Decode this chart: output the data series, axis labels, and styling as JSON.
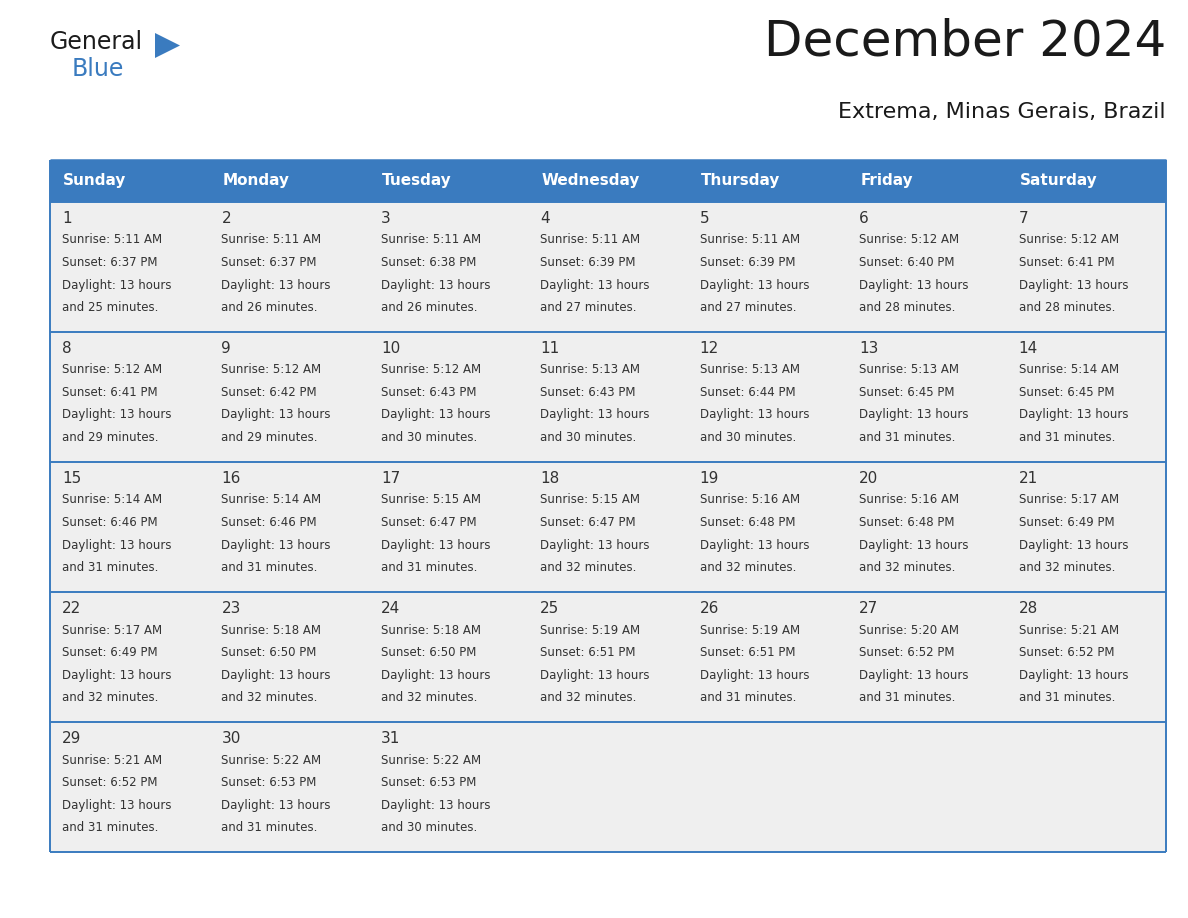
{
  "title": "December 2024",
  "subtitle": "Extrema, Minas Gerais, Brazil",
  "header_color": "#3a7bbf",
  "header_text_color": "#ffffff",
  "cell_bg_color": "#efefef",
  "day_names": [
    "Sunday",
    "Monday",
    "Tuesday",
    "Wednesday",
    "Thursday",
    "Friday",
    "Saturday"
  ],
  "days": [
    {
      "day": 1,
      "row": 0,
      "col": 0,
      "sunrise": "5:11 AM",
      "sunset": "6:37 PM",
      "daylight_min": "25"
    },
    {
      "day": 2,
      "row": 0,
      "col": 1,
      "sunrise": "5:11 AM",
      "sunset": "6:37 PM",
      "daylight_min": "26"
    },
    {
      "day": 3,
      "row": 0,
      "col": 2,
      "sunrise": "5:11 AM",
      "sunset": "6:38 PM",
      "daylight_min": "26"
    },
    {
      "day": 4,
      "row": 0,
      "col": 3,
      "sunrise": "5:11 AM",
      "sunset": "6:39 PM",
      "daylight_min": "27"
    },
    {
      "day": 5,
      "row": 0,
      "col": 4,
      "sunrise": "5:11 AM",
      "sunset": "6:39 PM",
      "daylight_min": "27"
    },
    {
      "day": 6,
      "row": 0,
      "col": 5,
      "sunrise": "5:12 AM",
      "sunset": "6:40 PM",
      "daylight_min": "28"
    },
    {
      "day": 7,
      "row": 0,
      "col": 6,
      "sunrise": "5:12 AM",
      "sunset": "6:41 PM",
      "daylight_min": "28"
    },
    {
      "day": 8,
      "row": 1,
      "col": 0,
      "sunrise": "5:12 AM",
      "sunset": "6:41 PM",
      "daylight_min": "29"
    },
    {
      "day": 9,
      "row": 1,
      "col": 1,
      "sunrise": "5:12 AM",
      "sunset": "6:42 PM",
      "daylight_min": "29"
    },
    {
      "day": 10,
      "row": 1,
      "col": 2,
      "sunrise": "5:12 AM",
      "sunset": "6:43 PM",
      "daylight_min": "30"
    },
    {
      "day": 11,
      "row": 1,
      "col": 3,
      "sunrise": "5:13 AM",
      "sunset": "6:43 PM",
      "daylight_min": "30"
    },
    {
      "day": 12,
      "row": 1,
      "col": 4,
      "sunrise": "5:13 AM",
      "sunset": "6:44 PM",
      "daylight_min": "30"
    },
    {
      "day": 13,
      "row": 1,
      "col": 5,
      "sunrise": "5:13 AM",
      "sunset": "6:45 PM",
      "daylight_min": "31"
    },
    {
      "day": 14,
      "row": 1,
      "col": 6,
      "sunrise": "5:14 AM",
      "sunset": "6:45 PM",
      "daylight_min": "31"
    },
    {
      "day": 15,
      "row": 2,
      "col": 0,
      "sunrise": "5:14 AM",
      "sunset": "6:46 PM",
      "daylight_min": "31"
    },
    {
      "day": 16,
      "row": 2,
      "col": 1,
      "sunrise": "5:14 AM",
      "sunset": "6:46 PM",
      "daylight_min": "31"
    },
    {
      "day": 17,
      "row": 2,
      "col": 2,
      "sunrise": "5:15 AM",
      "sunset": "6:47 PM",
      "daylight_min": "31"
    },
    {
      "day": 18,
      "row": 2,
      "col": 3,
      "sunrise": "5:15 AM",
      "sunset": "6:47 PM",
      "daylight_min": "32"
    },
    {
      "day": 19,
      "row": 2,
      "col": 4,
      "sunrise": "5:16 AM",
      "sunset": "6:48 PM",
      "daylight_min": "32"
    },
    {
      "day": 20,
      "row": 2,
      "col": 5,
      "sunrise": "5:16 AM",
      "sunset": "6:48 PM",
      "daylight_min": "32"
    },
    {
      "day": 21,
      "row": 2,
      "col": 6,
      "sunrise": "5:17 AM",
      "sunset": "6:49 PM",
      "daylight_min": "32"
    },
    {
      "day": 22,
      "row": 3,
      "col": 0,
      "sunrise": "5:17 AM",
      "sunset": "6:49 PM",
      "daylight_min": "32"
    },
    {
      "day": 23,
      "row": 3,
      "col": 1,
      "sunrise": "5:18 AM",
      "sunset": "6:50 PM",
      "daylight_min": "32"
    },
    {
      "day": 24,
      "row": 3,
      "col": 2,
      "sunrise": "5:18 AM",
      "sunset": "6:50 PM",
      "daylight_min": "32"
    },
    {
      "day": 25,
      "row": 3,
      "col": 3,
      "sunrise": "5:19 AM",
      "sunset": "6:51 PM",
      "daylight_min": "32"
    },
    {
      "day": 26,
      "row": 3,
      "col": 4,
      "sunrise": "5:19 AM",
      "sunset": "6:51 PM",
      "daylight_min": "31"
    },
    {
      "day": 27,
      "row": 3,
      "col": 5,
      "sunrise": "5:20 AM",
      "sunset": "6:52 PM",
      "daylight_min": "31"
    },
    {
      "day": 28,
      "row": 3,
      "col": 6,
      "sunrise": "5:21 AM",
      "sunset": "6:52 PM",
      "daylight_min": "31"
    },
    {
      "day": 29,
      "row": 4,
      "col": 0,
      "sunrise": "5:21 AM",
      "sunset": "6:52 PM",
      "daylight_min": "31"
    },
    {
      "day": 30,
      "row": 4,
      "col": 1,
      "sunrise": "5:22 AM",
      "sunset": "6:53 PM",
      "daylight_min": "31"
    },
    {
      "day": 31,
      "row": 4,
      "col": 2,
      "sunrise": "5:22 AM",
      "sunset": "6:53 PM",
      "daylight_min": "30"
    }
  ],
  "n_rows": 5,
  "text_color": "#1a1a1a",
  "border_color": "#3a7bbf",
  "cell_text_color": "#333333",
  "logo_color": "#3a7bbf",
  "fig_width": 11.88,
  "fig_height": 9.18,
  "dpi": 100
}
